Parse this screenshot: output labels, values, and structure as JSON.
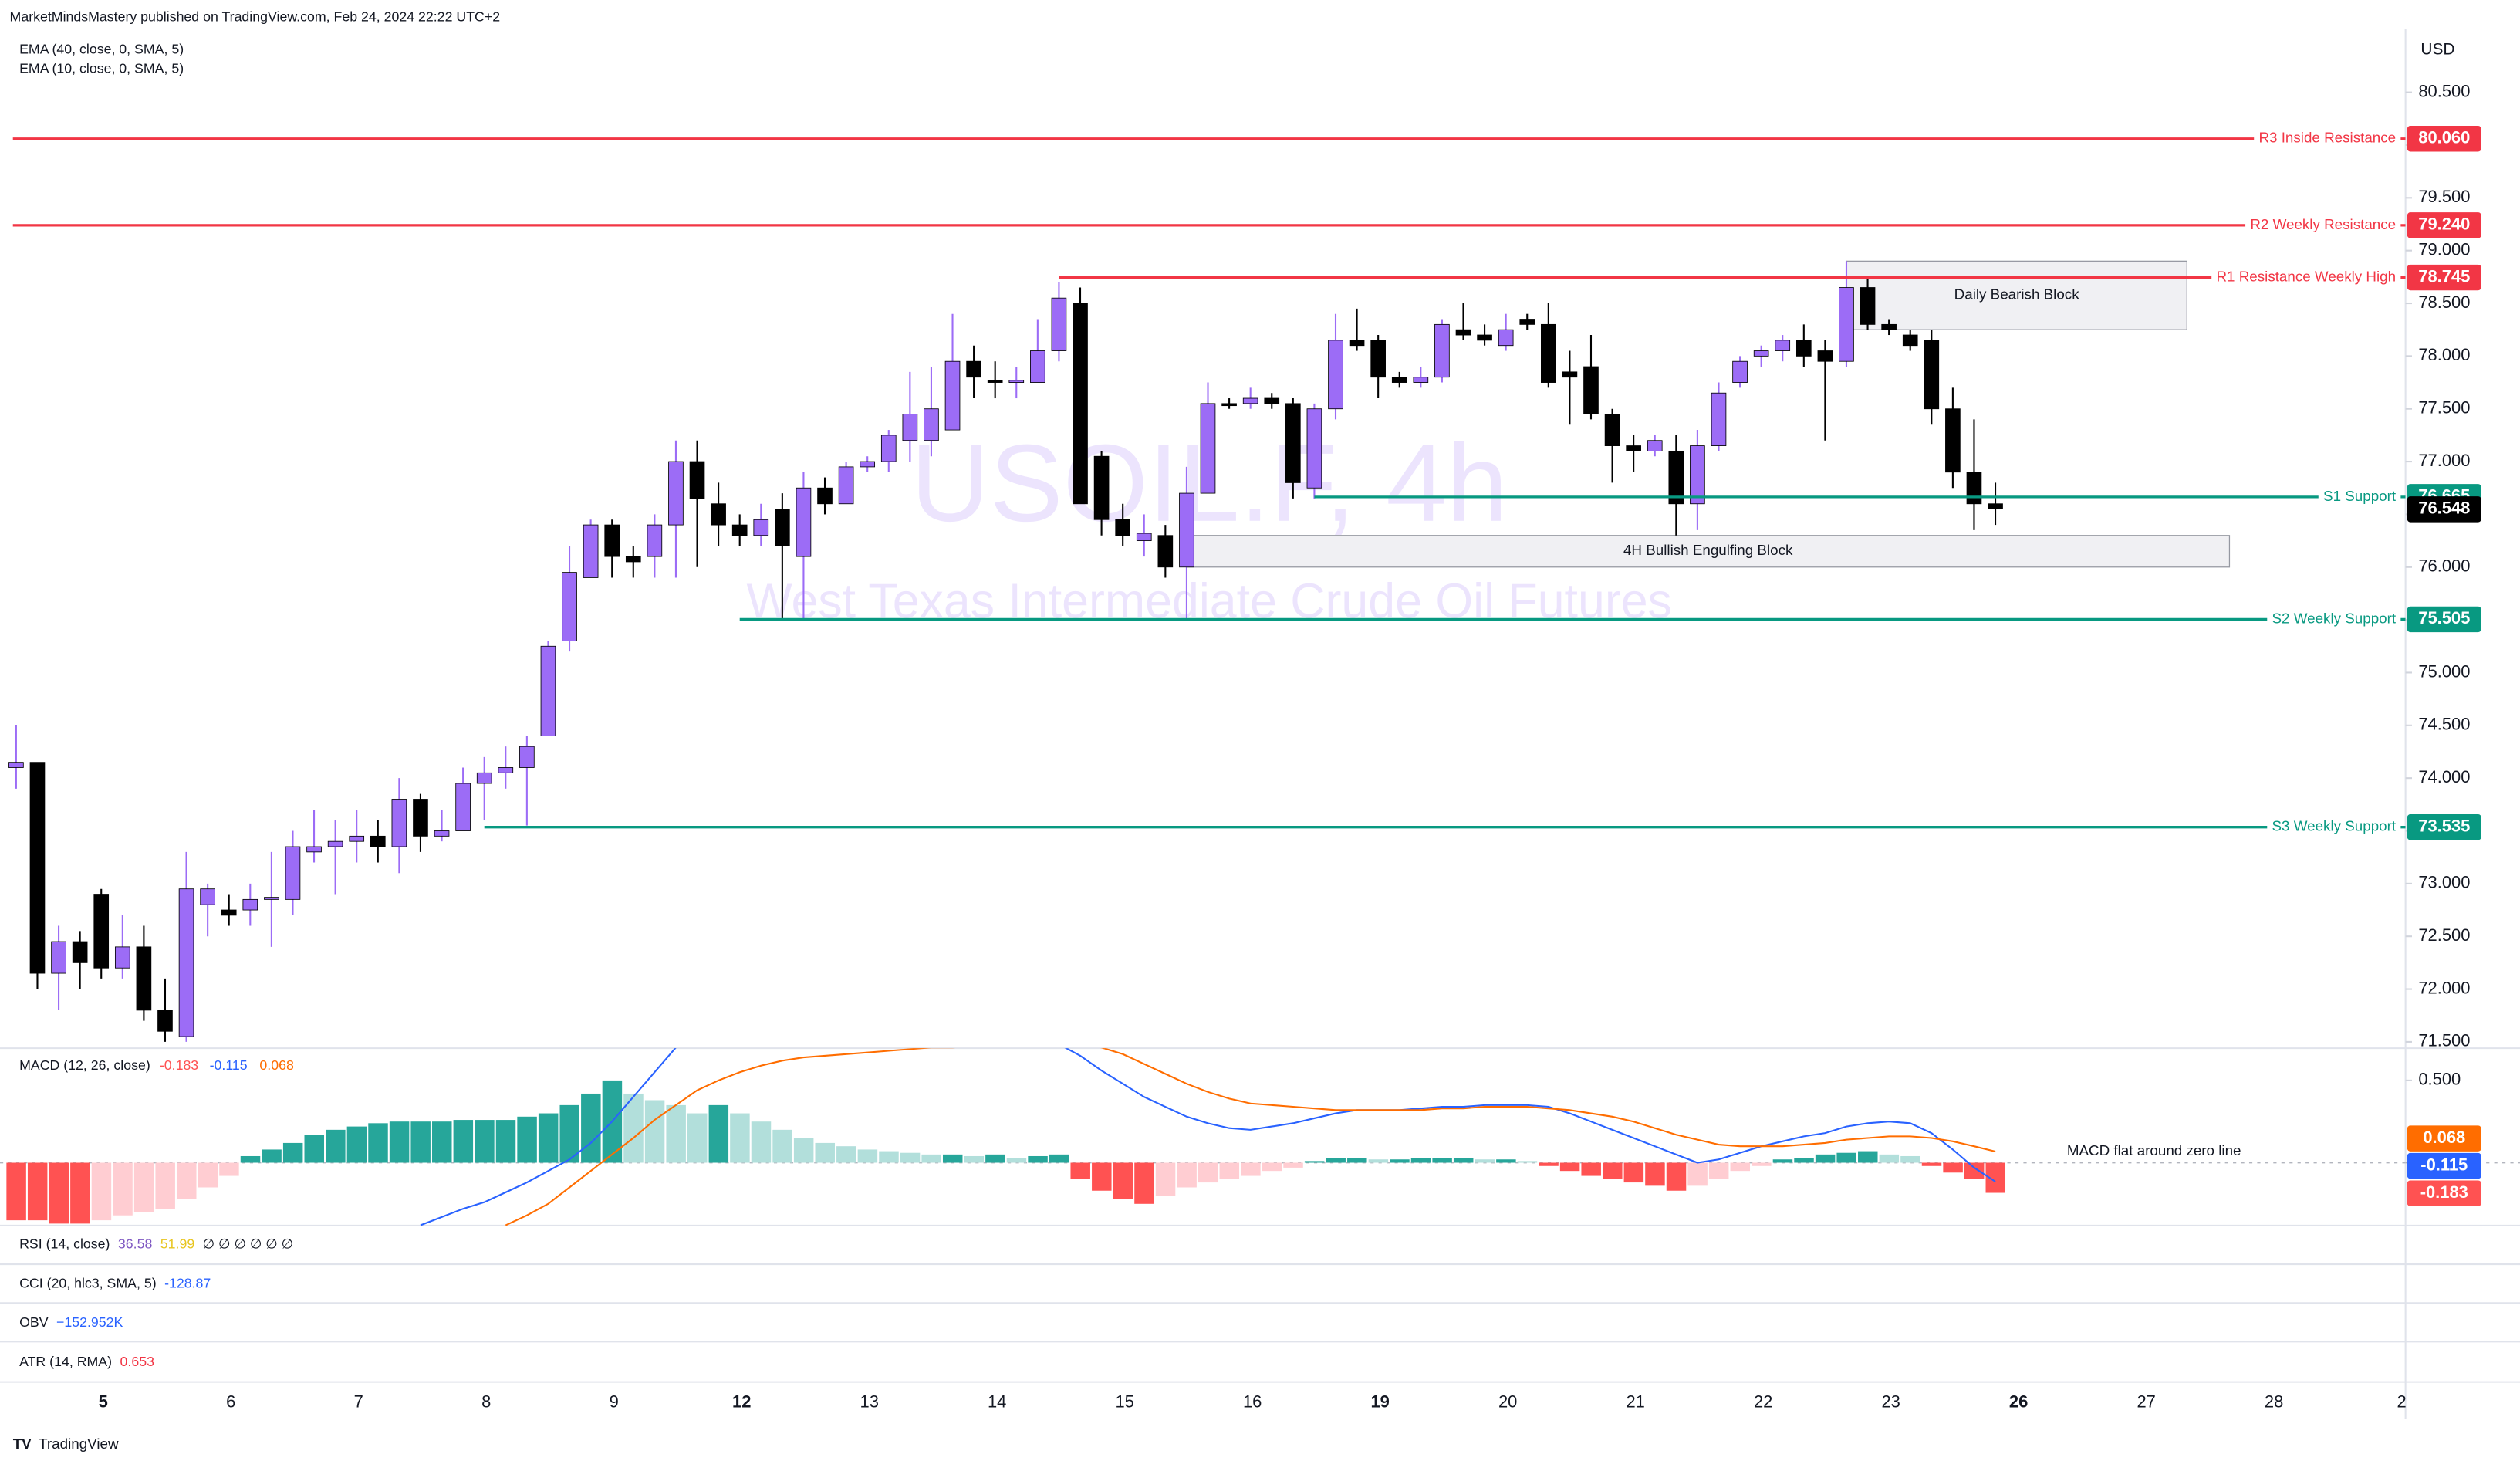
{
  "header": {
    "publisher": "MarketMindsMastery published on TradingView.com, Feb 24, 2024 22:22 UTC+2",
    "studies": [
      "EMA (40, close, 0, SMA, 5)",
      "EMA (10, close, 0, SMA, 5)"
    ],
    "footer": "TradingView"
  },
  "chart_data": {
    "type": "candlestick",
    "symbol": "USOIL.F, 4h",
    "description": "West Texas Intermediate Crude Oil Futures",
    "currency": "USD",
    "up_color": "#9c6cf6",
    "down_color": "#000000",
    "candles": [
      [
        74.1,
        74.5,
        73.9,
        74.15
      ],
      [
        74.15,
        74.15,
        72.0,
        72.15
      ],
      [
        72.15,
        72.6,
        71.8,
        72.45
      ],
      [
        72.45,
        72.55,
        72.0,
        72.25
      ],
      [
        72.9,
        72.95,
        72.1,
        72.2
      ],
      [
        72.2,
        72.7,
        72.1,
        72.4
      ],
      [
        72.4,
        72.6,
        71.7,
        71.8
      ],
      [
        71.8,
        72.1,
        71.5,
        71.6
      ],
      [
        71.55,
        73.3,
        71.5,
        72.95
      ],
      [
        72.8,
        73.0,
        72.5,
        72.95
      ],
      [
        72.75,
        72.9,
        72.6,
        72.7
      ],
      [
        72.75,
        73.0,
        72.6,
        72.85
      ],
      [
        72.85,
        73.3,
        72.4,
        72.87
      ],
      [
        72.85,
        73.5,
        72.7,
        73.35
      ],
      [
        73.3,
        73.7,
        73.2,
        73.35
      ],
      [
        73.35,
        73.6,
        72.9,
        73.4
      ],
      [
        73.4,
        73.7,
        73.2,
        73.45
      ],
      [
        73.45,
        73.6,
        73.2,
        73.35
      ],
      [
        73.35,
        74.0,
        73.1,
        73.8
      ],
      [
        73.8,
        73.85,
        73.3,
        73.45
      ],
      [
        73.45,
        73.7,
        73.4,
        73.5
      ],
      [
        73.5,
        74.1,
        73.5,
        73.95
      ],
      [
        73.95,
        74.2,
        73.6,
        74.05
      ],
      [
        74.05,
        74.3,
        73.9,
        74.1
      ],
      [
        74.1,
        74.4,
        73.55,
        74.3
      ],
      [
        74.4,
        75.3,
        74.4,
        75.25
      ],
      [
        75.3,
        76.2,
        75.2,
        75.95
      ],
      [
        75.9,
        76.45,
        75.9,
        76.4
      ],
      [
        76.4,
        76.45,
        75.9,
        76.1
      ],
      [
        76.1,
        76.2,
        75.9,
        76.05
      ],
      [
        76.1,
        76.5,
        75.9,
        76.4
      ],
      [
        76.4,
        77.2,
        75.9,
        77.0
      ],
      [
        77.0,
        77.2,
        76.0,
        76.65
      ],
      [
        76.6,
        76.8,
        76.2,
        76.4
      ],
      [
        76.4,
        76.5,
        76.2,
        76.3
      ],
      [
        76.3,
        76.6,
        76.2,
        76.45
      ],
      [
        76.55,
        76.7,
        75.5,
        76.2
      ],
      [
        76.1,
        76.9,
        75.5,
        76.75
      ],
      [
        76.75,
        76.85,
        76.5,
        76.6
      ],
      [
        76.6,
        77.0,
        76.6,
        76.95
      ],
      [
        76.95,
        77.05,
        76.9,
        77.0
      ],
      [
        77.0,
        77.3,
        76.9,
        77.25
      ],
      [
        77.2,
        77.85,
        77.0,
        77.45
      ],
      [
        77.2,
        77.9,
        77.05,
        77.5
      ],
      [
        77.3,
        78.4,
        77.3,
        77.95
      ],
      [
        77.95,
        78.1,
        77.6,
        77.8
      ],
      [
        77.77,
        77.95,
        77.6,
        77.75
      ],
      [
        77.75,
        77.9,
        77.6,
        77.77
      ],
      [
        77.75,
        78.35,
        77.75,
        78.05
      ],
      [
        78.05,
        78.7,
        77.95,
        78.55
      ],
      [
        78.5,
        78.65,
        76.6,
        76.6
      ],
      [
        77.05,
        77.1,
        76.3,
        76.45
      ],
      [
        76.45,
        76.6,
        76.2,
        76.3
      ],
      [
        76.25,
        76.5,
        76.1,
        76.32
      ],
      [
        76.3,
        76.4,
        75.9,
        76.0
      ],
      [
        76.0,
        76.95,
        75.5,
        76.7
      ],
      [
        76.7,
        77.75,
        76.7,
        77.55
      ],
      [
        77.55,
        77.6,
        77.5,
        77.53
      ],
      [
        77.55,
        77.7,
        77.5,
        77.6
      ],
      [
        77.6,
        77.65,
        77.5,
        77.55
      ],
      [
        77.55,
        77.6,
        76.65,
        76.8
      ],
      [
        76.75,
        77.55,
        76.65,
        77.5
      ],
      [
        77.5,
        78.4,
        77.4,
        78.15
      ],
      [
        78.15,
        78.45,
        78.05,
        78.1
      ],
      [
        78.15,
        78.2,
        77.6,
        77.8
      ],
      [
        77.8,
        77.85,
        77.7,
        77.75
      ],
      [
        77.75,
        77.9,
        77.7,
        77.8
      ],
      [
        77.8,
        78.35,
        77.75,
        78.3
      ],
      [
        78.25,
        78.5,
        78.15,
        78.2
      ],
      [
        78.2,
        78.3,
        78.1,
        78.15
      ],
      [
        78.1,
        78.4,
        78.05,
        78.25
      ],
      [
        78.35,
        78.4,
        78.25,
        78.3
      ],
      [
        78.3,
        78.5,
        77.7,
        77.75
      ],
      [
        77.85,
        78.05,
        77.35,
        77.8
      ],
      [
        77.9,
        78.2,
        77.4,
        77.45
      ],
      [
        77.45,
        77.5,
        76.8,
        77.15
      ],
      [
        77.15,
        77.25,
        76.9,
        77.1
      ],
      [
        77.1,
        77.25,
        77.05,
        77.2
      ],
      [
        77.1,
        77.25,
        76.3,
        76.6
      ],
      [
        76.6,
        77.3,
        76.35,
        77.15
      ],
      [
        77.15,
        77.75,
        77.1,
        77.65
      ],
      [
        77.75,
        78.0,
        77.7,
        77.95
      ],
      [
        78.0,
        78.1,
        77.9,
        78.05
      ],
      [
        78.05,
        78.2,
        77.95,
        78.15
      ],
      [
        78.15,
        78.3,
        77.9,
        78.0
      ],
      [
        78.05,
        78.15,
        77.2,
        77.95
      ],
      [
        77.95,
        78.9,
        77.9,
        78.65
      ],
      [
        78.65,
        78.75,
        78.25,
        78.3
      ],
      [
        78.3,
        78.35,
        78.2,
        78.25
      ],
      [
        78.2,
        78.25,
        78.05,
        78.1
      ],
      [
        78.15,
        78.25,
        77.35,
        77.5
      ],
      [
        77.5,
        77.7,
        76.75,
        76.9
      ],
      [
        76.9,
        77.4,
        76.35,
        76.6
      ],
      [
        76.6,
        76.8,
        76.4,
        76.55
      ]
    ],
    "last_price": 76.548,
    "ylim": [
      71.44,
      81.1
    ],
    "yticks": [
      {
        "value": 80.5,
        "label": "80.500"
      },
      {
        "value": 80,
        "label": "80.000"
      },
      {
        "value": 79.5,
        "label": "79.500"
      },
      {
        "value": 79,
        "label": "79.000"
      },
      {
        "value": 78.5,
        "label": "78.500"
      },
      {
        "value": 78,
        "label": "78.000"
      },
      {
        "value": 77.5,
        "label": "77.500"
      },
      {
        "value": 77,
        "label": "77.000"
      },
      {
        "value": 76.5,
        "label": "76.500"
      },
      {
        "value": 76,
        "label": "76.000"
      },
      {
        "value": 75.5,
        "label": "75.500"
      },
      {
        "value": 75,
        "label": "75.000"
      },
      {
        "value": 74.5,
        "label": "74.500"
      },
      {
        "value": 74,
        "label": "74.000"
      },
      {
        "value": 73.5,
        "label": "73.500"
      },
      {
        "value": 73,
        "label": "73.000"
      },
      {
        "value": 72.5,
        "label": "72.500"
      },
      {
        "value": 72,
        "label": "72.000"
      },
      {
        "value": 71.5,
        "label": "71.500"
      }
    ],
    "xticks": [
      {
        "label": "5",
        "bold": true
      },
      {
        "label": "6",
        "bold": false
      },
      {
        "label": "7",
        "bold": false
      },
      {
        "label": "8",
        "bold": false
      },
      {
        "label": "9",
        "bold": false
      },
      {
        "label": "12",
        "bold": true
      },
      {
        "label": "13",
        "bold": false
      },
      {
        "label": "14",
        "bold": false
      },
      {
        "label": "15",
        "bold": false
      },
      {
        "label": "16",
        "bold": false
      },
      {
        "label": "19",
        "bold": true
      },
      {
        "label": "20",
        "bold": false
      },
      {
        "label": "21",
        "bold": false
      },
      {
        "label": "22",
        "bold": false
      },
      {
        "label": "23",
        "bold": false
      },
      {
        "label": "26",
        "bold": true
      },
      {
        "label": "27",
        "bold": false
      },
      {
        "label": "28",
        "bold": false
      },
      {
        "label": "2",
        "bold": false
      }
    ],
    "levels": [
      {
        "name": "R3 Inside Resistance",
        "value": 80.06,
        "label": "80.060",
        "color": "#f23645",
        "from": 0
      },
      {
        "name": "R2 Weekly Resistance",
        "value": 79.24,
        "label": "79.240",
        "color": "#f23645",
        "from": 0
      },
      {
        "name": "R1 Resistance Weekly High",
        "value": 78.745,
        "color": "#f23645",
        "from": 49
      },
      {
        "name": "S1 Support",
        "value": 76.665,
        "color": "#089981",
        "from": 61
      },
      {
        "name": "S2 Weekly Support",
        "value": 75.505,
        "color": "#089981",
        "from": 34
      },
      {
        "name": "S3 Weekly Support",
        "value": 73.535,
        "color": "#089981",
        "from": 22
      }
    ],
    "zones": [
      {
        "name": "Daily Bearish Block",
        "top": 78.9,
        "bottom": 78.25,
        "from": 86,
        "to": 102
      },
      {
        "name": "4H Bullish Engulfing Block",
        "top": 76.3,
        "bottom": 76.0,
        "from": 55,
        "to": 104
      }
    ],
    "macd": {
      "title": "MACD (12, 26, close)",
      "annotation": "MACD flat around zero line",
      "ylim": [
        -0.382,
        0.696
      ],
      "yticks": [
        {
          "value": 0.5,
          "label": "0.500"
        }
      ],
      "histogram_colors": {
        "pos_up": "#26a69a",
        "pos_down": "#b2dfdb",
        "neg_down": "#ff5252",
        "neg_up": "#ffcdd2"
      },
      "macd_color": "#2962ff",
      "signal_color": "#ff6d00",
      "histogram": [
        -0.35,
        -0.35,
        -0.37,
        -0.37,
        -0.35,
        -0.32,
        -0.3,
        -0.28,
        -0.22,
        -0.15,
        -0.08,
        0.04,
        0.08,
        0.12,
        0.17,
        0.2,
        0.22,
        0.24,
        0.25,
        0.25,
        0.25,
        0.26,
        0.26,
        0.26,
        0.28,
        0.3,
        0.35,
        0.42,
        0.5,
        0.42,
        0.38,
        0.35,
        0.3,
        0.35,
        0.3,
        0.25,
        0.2,
        0.15,
        0.12,
        0.1,
        0.08,
        0.07,
        0.06,
        0.05,
        0.05,
        0.04,
        0.05,
        0.03,
        0.04,
        0.05,
        -0.1,
        -0.17,
        -0.22,
        -0.25,
        -0.2,
        -0.15,
        -0.12,
        -0.1,
        -0.08,
        -0.05,
        -0.03,
        0.01,
        0.03,
        0.03,
        0.02,
        0.02,
        0.03,
        0.03,
        0.03,
        0.02,
        0.02,
        0.01,
        -0.02,
        -0.05,
        -0.08,
        -0.1,
        -0.12,
        -0.14,
        -0.17,
        -0.14,
        -0.1,
        -0.05,
        -0.02,
        0.02,
        0.03,
        0.05,
        0.06,
        0.07,
        0.05,
        0.04,
        -0.02,
        -0.06,
        -0.1,
        -0.183
      ],
      "macd": [
        null,
        null,
        null,
        null,
        null,
        null,
        null,
        null,
        null,
        null,
        null,
        null,
        null,
        null,
        null,
        null,
        null,
        null,
        null,
        -0.38,
        -0.33,
        -0.28,
        -0.24,
        -0.18,
        -0.12,
        -0.05,
        0.02,
        0.12,
        0.25,
        0.4,
        0.55,
        0.7,
        0.8,
        0.88,
        0.92,
        0.95,
        0.95,
        0.95,
        0.96,
        0.97,
        0.98,
        0.98,
        0.97,
        0.95,
        0.93,
        0.9,
        0.86,
        0.82,
        0.78,
        0.72,
        0.65,
        0.56,
        0.48,
        0.4,
        0.34,
        0.28,
        0.24,
        0.21,
        0.2,
        0.22,
        0.24,
        0.27,
        0.3,
        0.32,
        0.32,
        0.32,
        0.33,
        0.34,
        0.34,
        0.35,
        0.35,
        0.35,
        0.34,
        0.3,
        0.25,
        0.2,
        0.15,
        0.1,
        0.05,
        0.0,
        0.02,
        0.06,
        0.1,
        0.13,
        0.16,
        0.18,
        0.22,
        0.24,
        0.25,
        0.24,
        0.18,
        0.08,
        -0.03,
        -0.115
      ],
      "signal": [
        null,
        null,
        null,
        null,
        null,
        null,
        null,
        null,
        null,
        null,
        null,
        null,
        null,
        null,
        null,
        null,
        null,
        null,
        null,
        null,
        null,
        null,
        null,
        -0.38,
        -0.32,
        -0.25,
        -0.15,
        -0.05,
        0.05,
        0.15,
        0.26,
        0.35,
        0.44,
        0.5,
        0.55,
        0.59,
        0.62,
        0.64,
        0.65,
        0.66,
        0.67,
        0.68,
        0.69,
        0.7,
        0.7,
        0.71,
        0.71,
        0.72,
        0.72,
        0.72,
        0.72,
        0.7,
        0.66,
        0.6,
        0.54,
        0.48,
        0.43,
        0.39,
        0.36,
        0.35,
        0.34,
        0.33,
        0.32,
        0.32,
        0.32,
        0.32,
        0.32,
        0.33,
        0.33,
        0.34,
        0.34,
        0.34,
        0.33,
        0.32,
        0.3,
        0.28,
        0.25,
        0.21,
        0.17,
        0.14,
        0.11,
        0.1,
        0.1,
        0.1,
        0.11,
        0.12,
        0.14,
        0.15,
        0.16,
        0.16,
        0.15,
        0.13,
        0.1,
        0.068
      ]
    },
    "indicators": [
      {
        "title": "RSI (14, close)",
        "values": [
          36.58,
          51.99
        ],
        "colors": [
          "#7e57c2",
          "#e8c520"
        ],
        "extra": "∅ ∅ ∅ ∅ ∅ ∅"
      },
      {
        "title": "CCI (20, hlc3, SMA, 5)",
        "values": [
          -128.87
        ],
        "colors": [
          "#2962ff"
        ]
      },
      {
        "title": "OBV",
        "values": [
          -152952
        ],
        "value_labels": [
          "−152.952K"
        ],
        "colors": [
          "#2962ff"
        ]
      },
      {
        "title": "ATR (14, RMA)",
        "values": [
          0.653
        ],
        "colors": [
          "#f23645"
        ]
      }
    ]
  }
}
